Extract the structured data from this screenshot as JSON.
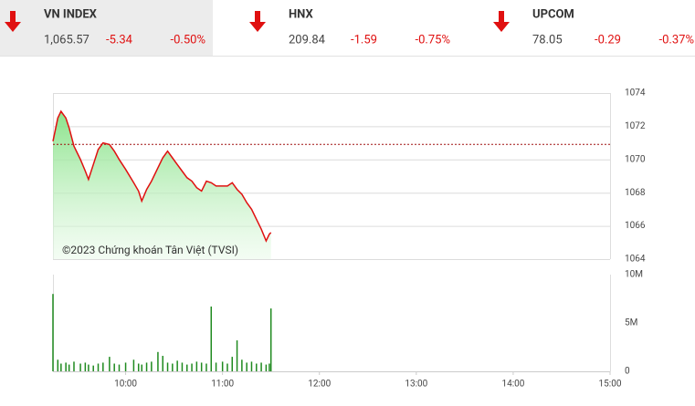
{
  "tickers": [
    {
      "name": "VN INDEX",
      "value": "1,065.57",
      "change": "-5.34",
      "percent": "-0.50%"
    },
    {
      "name": "HNX",
      "value": "209.84",
      "change": "-1.59",
      "percent": "-0.75%"
    },
    {
      "name": "UPCOM",
      "value": "78.05",
      "change": "-0.29",
      "percent": "-0.37%"
    }
  ],
  "chart_data": [
    {
      "type": "line",
      "annotation": "©2023 Chứng khoán Tân Việt (TVSI)",
      "x": [
        555,
        558,
        560,
        563,
        565,
        568,
        572,
        575,
        577,
        580,
        583,
        586,
        590,
        593,
        596,
        600,
        605,
        608,
        610,
        613,
        616,
        620,
        623,
        626,
        629,
        632,
        635,
        638,
        641,
        644,
        647,
        650,
        653,
        656,
        660,
        663,
        666,
        669,
        672,
        675,
        678,
        681,
        684,
        687,
        689,
        690
      ],
      "values": [
        1071.1,
        1072.5,
        1072.9,
        1072.5,
        1071.9,
        1070.8,
        1070.0,
        1069.3,
        1068.8,
        1069.7,
        1070.6,
        1071.0,
        1070.9,
        1070.5,
        1070.0,
        1069.4,
        1068.6,
        1068.1,
        1067.5,
        1068.2,
        1068.7,
        1069.5,
        1070.1,
        1070.5,
        1070.1,
        1069.7,
        1069.3,
        1068.9,
        1068.7,
        1068.3,
        1068.1,
        1068.7,
        1068.6,
        1068.4,
        1068.4,
        1068.4,
        1068.6,
        1068.2,
        1067.9,
        1067.4,
        1067.0,
        1066.4,
        1065.8,
        1065.1,
        1065.5,
        1065.6
      ],
      "color": "#e01010",
      "reference": 1070.91,
      "xlim": [
        555,
        900
      ],
      "ylim": [
        1064,
        1074
      ],
      "yticks": [
        1064,
        1066,
        1068,
        1070,
        1072,
        1074
      ],
      "grid": true
    },
    {
      "type": "bar",
      "x": [
        555,
        558,
        560,
        563,
        565,
        568,
        572,
        575,
        577,
        580,
        583,
        586,
        590,
        593,
        596,
        600,
        605,
        608,
        610,
        613,
        616,
        620,
        623,
        626,
        629,
        632,
        635,
        638,
        641,
        644,
        647,
        650,
        653,
        656,
        660,
        663,
        666,
        669,
        672,
        675,
        678,
        681,
        684,
        687,
        689,
        690
      ],
      "values": [
        8000000,
        1200000,
        800000,
        900000,
        700000,
        1000000,
        800000,
        900000,
        700000,
        600000,
        800000,
        900000,
        1500000,
        800000,
        700000,
        900000,
        1200000,
        800000,
        700000,
        900000,
        1000000,
        2000000,
        1600000,
        900000,
        800000,
        1100000,
        900000,
        700000,
        800000,
        1000000,
        900000,
        800000,
        6700000,
        900000,
        1000000,
        800000,
        1500000,
        3200000,
        1200000,
        900000,
        1000000,
        800000,
        900000,
        700000,
        800000,
        6500000
      ],
      "color": "#1f8a1f",
      "xlim": [
        555,
        900
      ],
      "xticks": [
        {
          "value": 600,
          "label": "10:00"
        },
        {
          "value": 660,
          "label": "11:00"
        },
        {
          "value": 720,
          "label": "12:00"
        },
        {
          "value": 780,
          "label": "13:00"
        },
        {
          "value": 840,
          "label": "14:00"
        },
        {
          "value": 900,
          "label": "15:00"
        }
      ],
      "ylim": [
        0,
        10000000
      ],
      "yticks": [
        0,
        {
          "value": 5000000,
          "label": "5M"
        },
        {
          "value": 10000000,
          "label": "10M"
        }
      ]
    }
  ]
}
